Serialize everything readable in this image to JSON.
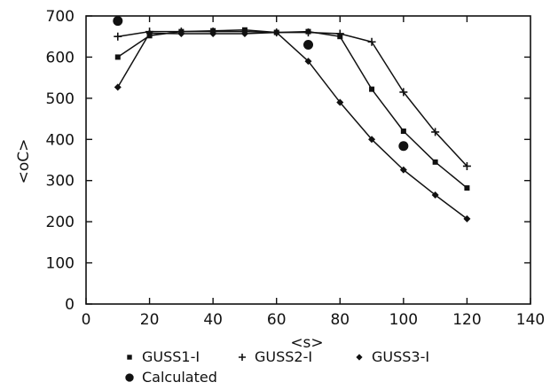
{
  "chart_data": {
    "type": "line",
    "title": "",
    "xlabel": "<s>",
    "ylabel": "<oC>",
    "xlim": [
      0,
      140
    ],
    "ylim": [
      0,
      700
    ],
    "xticks": [
      "0",
      "20",
      "40",
      "60",
      "80",
      "100",
      "120",
      "140"
    ],
    "yticks": [
      "0",
      "100",
      "200",
      "300",
      "400",
      "500",
      "600",
      "700"
    ],
    "grid": false,
    "legend_position": "bottom",
    "series": [
      {
        "name": "GUSS1-I",
        "marker": "square",
        "x": [
          10,
          20,
          30,
          40,
          50,
          60,
          70,
          80,
          90,
          100,
          110,
          120
        ],
        "y": [
          600,
          652,
          662,
          664,
          666,
          660,
          662,
          650,
          522,
          420,
          345,
          282
        ]
      },
      {
        "name": "GUSS2-I",
        "marker": "plus",
        "x": [
          10,
          20,
          30,
          40,
          50,
          60,
          70,
          80,
          90,
          100,
          110,
          120
        ],
        "y": [
          650,
          662,
          662,
          662,
          662,
          660,
          660,
          657,
          637,
          515,
          418,
          335
        ]
      },
      {
        "name": "GUSS3-I",
        "marker": "diamond",
        "x": [
          10,
          20,
          30,
          40,
          50,
          60,
          70,
          80,
          90,
          100,
          110,
          120
        ],
        "y": [
          527,
          658,
          657,
          657,
          657,
          660,
          590,
          490,
          400,
          326,
          265,
          207
        ]
      },
      {
        "name": "Calculated",
        "marker": "circle",
        "x": [
          10,
          70,
          100
        ],
        "y": [
          688,
          630,
          384
        ]
      }
    ]
  }
}
